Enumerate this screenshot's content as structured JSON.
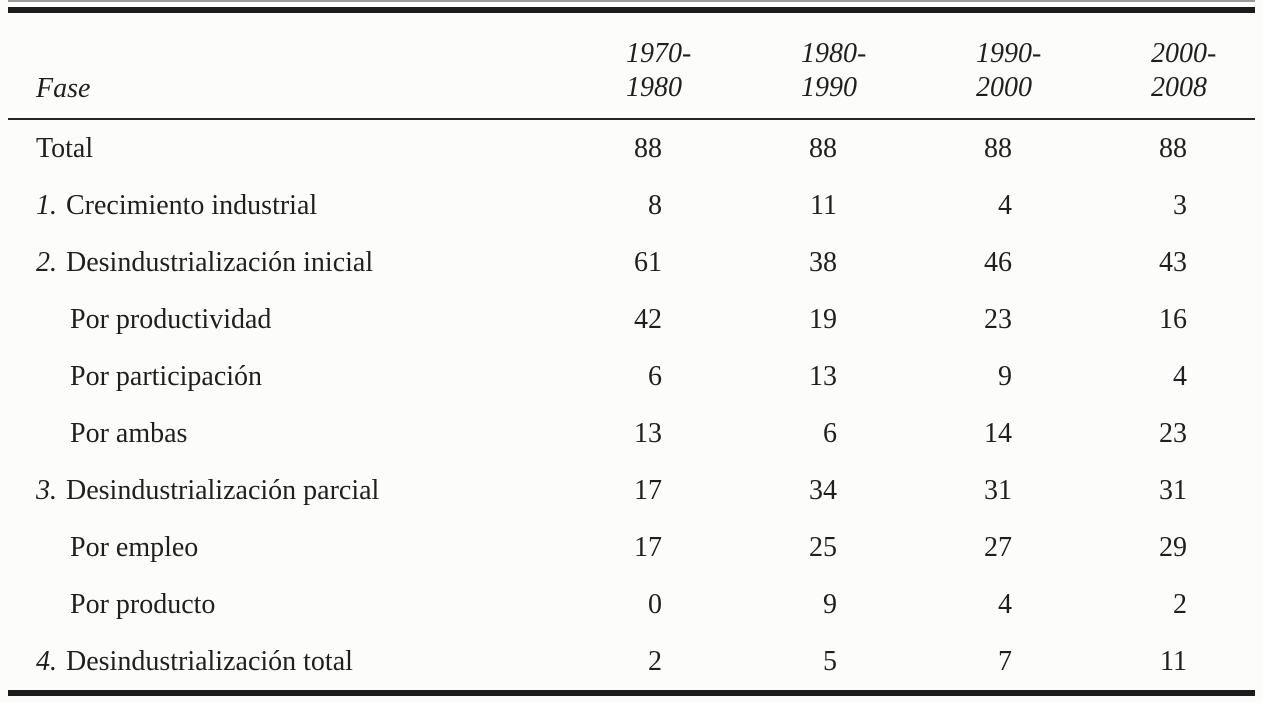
{
  "page": {
    "background": "#fcfcfb",
    "text_color": "#1f1f1f",
    "rule_color": "#1c1c1c"
  },
  "table": {
    "column_header_label": "Fase",
    "period_headers": [
      {
        "line1": "1970-",
        "line2": "1980"
      },
      {
        "line1": "1980-",
        "line2": "1990"
      },
      {
        "line1": "1990-",
        "line2": "2000"
      },
      {
        "line1": "2000-",
        "line2": "2008"
      }
    ],
    "rows": [
      {
        "number": "",
        "label": "Total",
        "indent": false,
        "values": [
          "88",
          "88",
          "88",
          "88"
        ]
      },
      {
        "number": "1.",
        "label": "Crecimiento industrial",
        "indent": false,
        "values": [
          "8",
          "11",
          "4",
          "3"
        ]
      },
      {
        "number": "2.",
        "label": "Desindustrialización inicial",
        "indent": false,
        "values": [
          "61",
          "38",
          "46",
          "43"
        ]
      },
      {
        "number": "",
        "label": "Por productividad",
        "indent": true,
        "values": [
          "42",
          "19",
          "23",
          "16"
        ]
      },
      {
        "number": "",
        "label": "Por participación",
        "indent": true,
        "values": [
          "6",
          "13",
          "9",
          "4"
        ]
      },
      {
        "number": "",
        "label": "Por ambas",
        "indent": true,
        "values": [
          "13",
          "6",
          "14",
          "23"
        ]
      },
      {
        "number": "3.",
        "label": "Desindustrialización parcial",
        "indent": false,
        "values": [
          "17",
          "34",
          "31",
          "31"
        ]
      },
      {
        "number": "",
        "label": "Por empleo",
        "indent": true,
        "values": [
          "17",
          "25",
          "27",
          "29"
        ]
      },
      {
        "number": "",
        "label": "Por producto",
        "indent": true,
        "values": [
          "0",
          "9",
          "4",
          "2"
        ]
      },
      {
        "number": "4.",
        "label": "Desindustrialización total",
        "indent": false,
        "values": [
          "2",
          "5",
          "7",
          "11"
        ]
      }
    ]
  }
}
